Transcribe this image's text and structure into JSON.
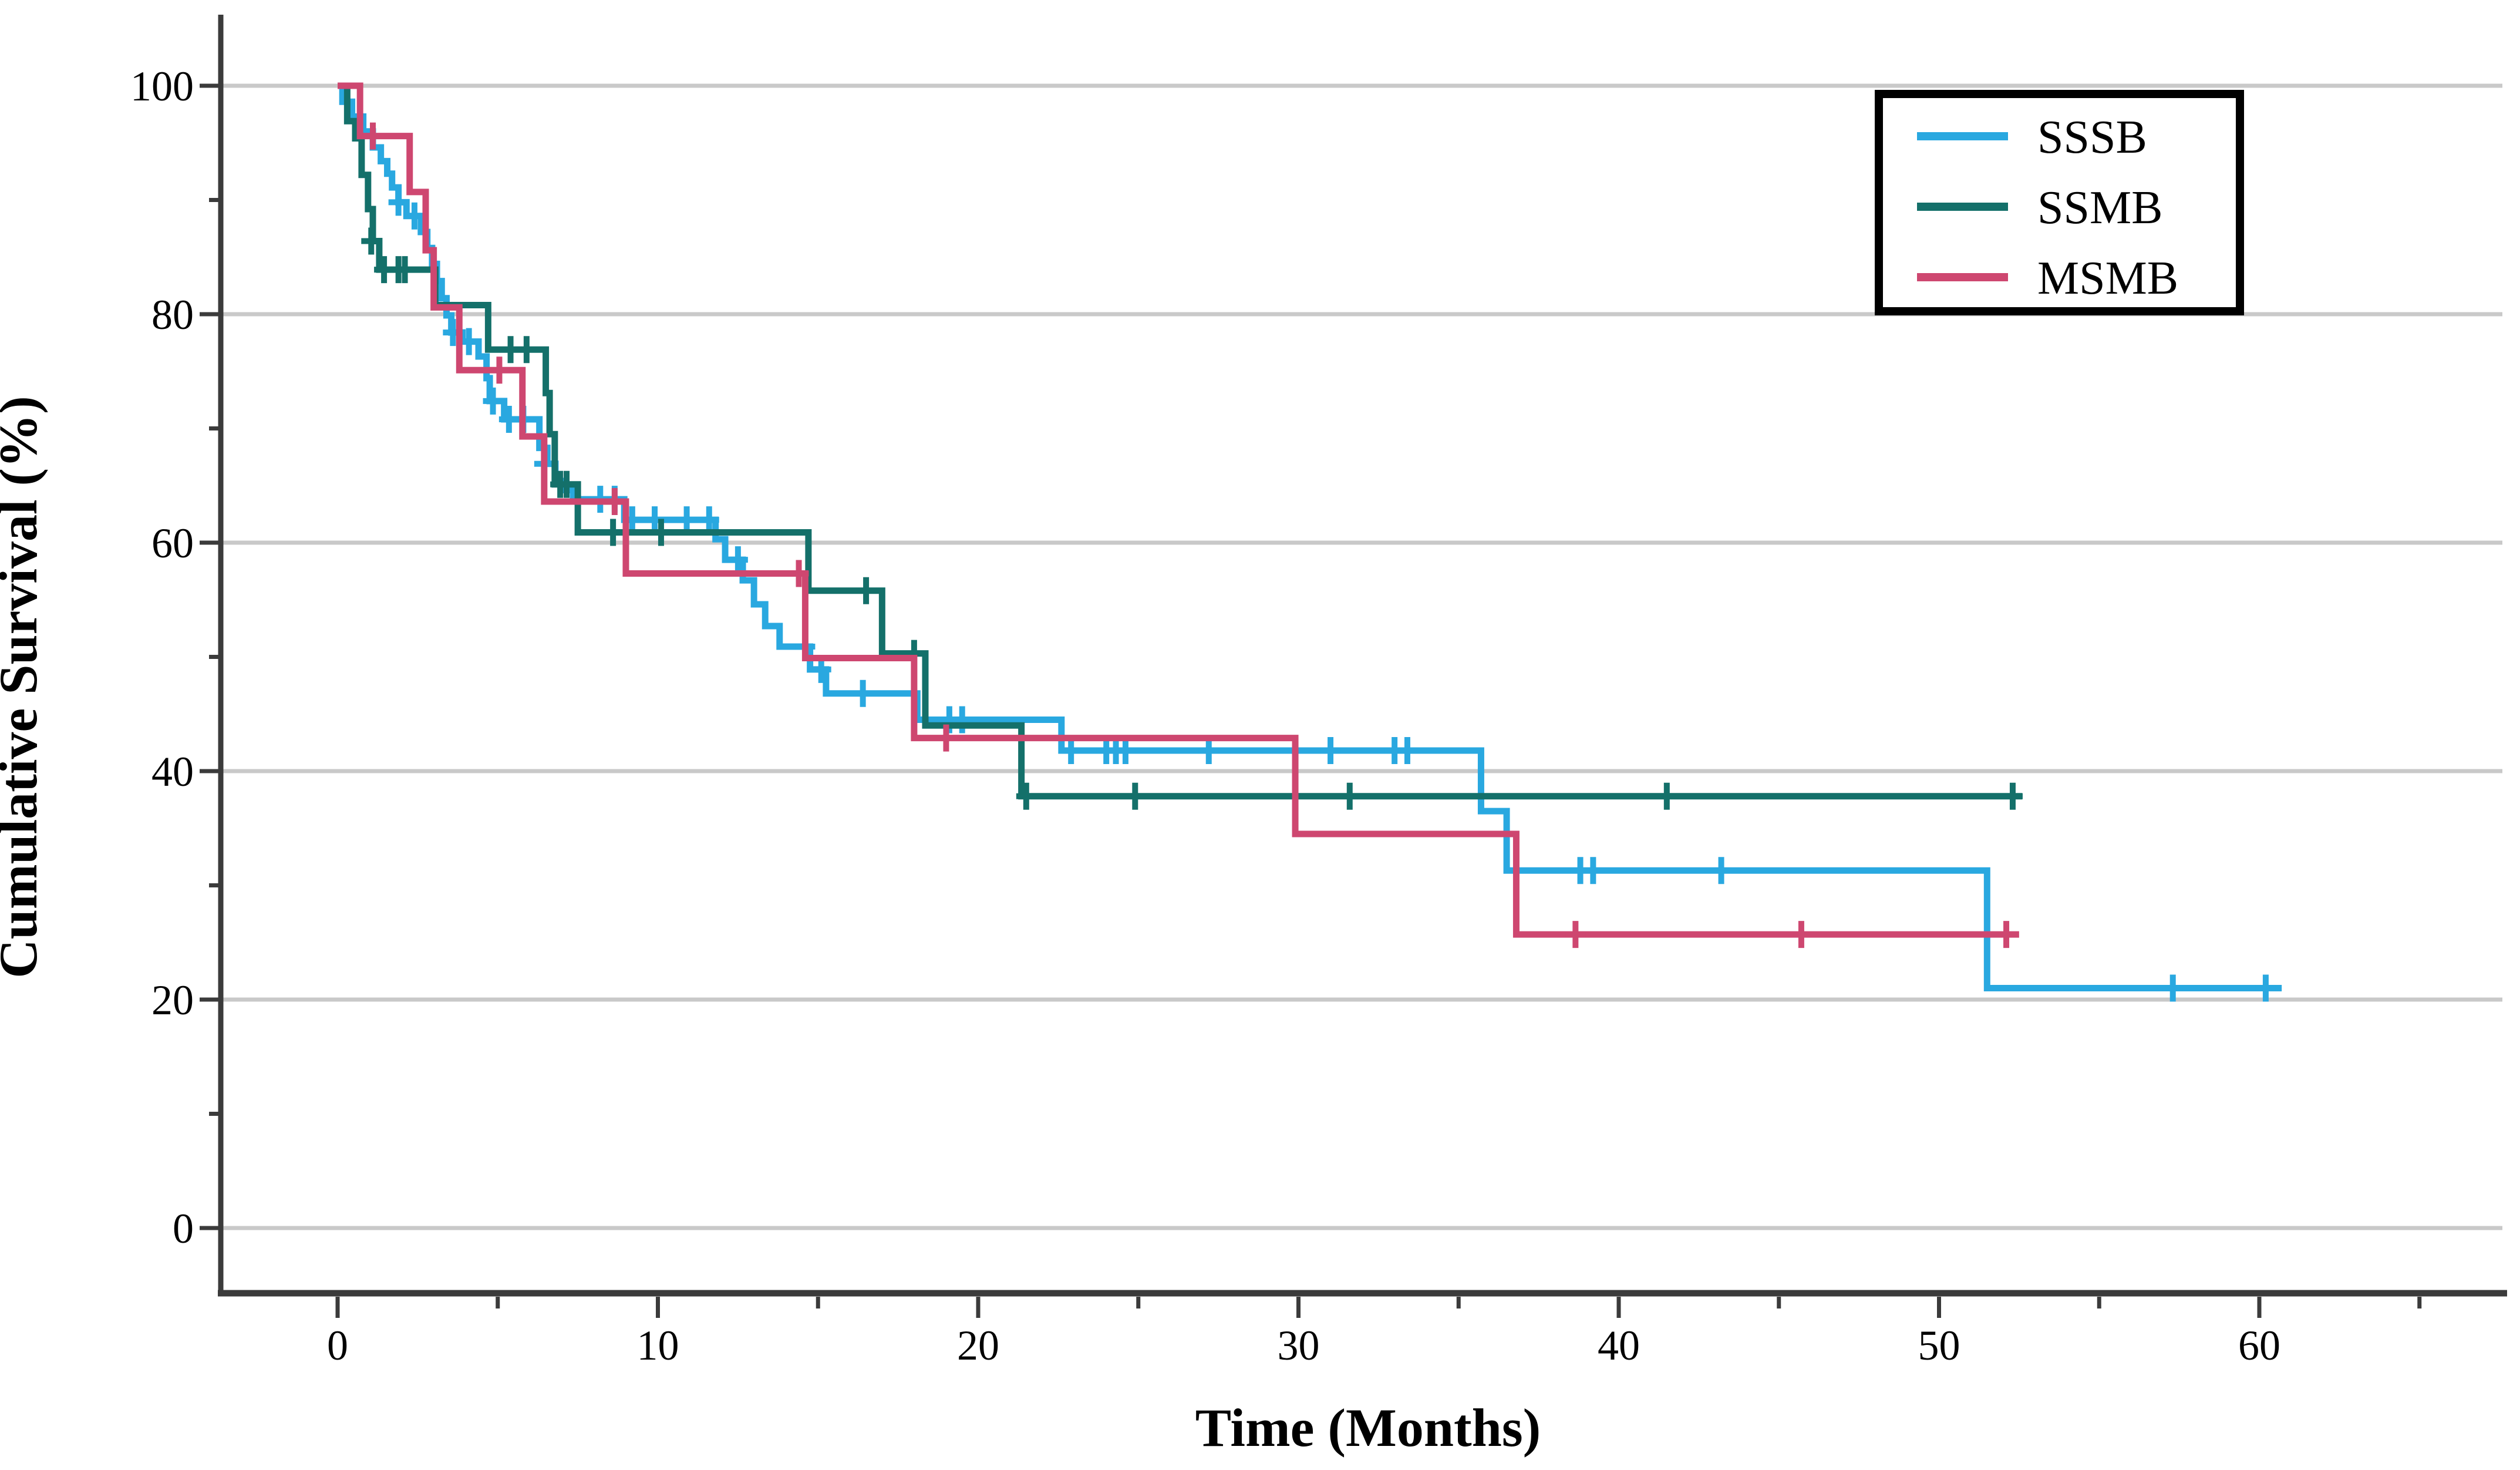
{
  "figure": {
    "background": "#ffffff",
    "axis_color": "#3b3b3b",
    "grid_color": "#c9c9c9",
    "text_color": "#000000"
  },
  "chart_data": {
    "type": "line",
    "subtype": "kaplan-meier-step-survival",
    "title": "",
    "xlabel": "Time (Months)",
    "ylabel": "Cumulative Survival (%)",
    "xlim": [
      -3.6,
      67.7
    ],
    "ylim": [
      -5.7,
      106
    ],
    "x_ticks_major": [
      0,
      10,
      20,
      30,
      40,
      50,
      60
    ],
    "x_ticks_minor": [
      5,
      15,
      25,
      35,
      45,
      55,
      65
    ],
    "y_ticks_major": [
      0,
      20,
      40,
      60,
      80,
      100
    ],
    "y_ticks_minor": [
      10,
      30,
      50,
      70,
      90
    ],
    "grid": "horizontal-major-only",
    "legend": {
      "position": "top-right",
      "border_color": "#000000",
      "fill": "#ffffff"
    },
    "series": [
      {
        "name": "SSSB",
        "color": "#29A8E0",
        "end_time": 60.7,
        "steps": [
          [
            0,
            100
          ],
          [
            0.15,
            98.6
          ],
          [
            0.45,
            97.3
          ],
          [
            0.8,
            96.0
          ],
          [
            1.1,
            94.6
          ],
          [
            1.35,
            93.4
          ],
          [
            1.55,
            92.3
          ],
          [
            1.7,
            91.1
          ],
          [
            1.9,
            89.8
          ],
          [
            2.15,
            88.6
          ],
          [
            2.6,
            87.2
          ],
          [
            2.8,
            85.8
          ],
          [
            2.95,
            84.4
          ],
          [
            3.1,
            82.9
          ],
          [
            3.25,
            81.4
          ],
          [
            3.4,
            79.9
          ],
          [
            3.55,
            78.4
          ],
          [
            3.9,
            77.6
          ],
          [
            4.4,
            76.3
          ],
          [
            4.65,
            74.4
          ],
          [
            4.75,
            72.4
          ],
          [
            5.2,
            70.8
          ],
          [
            6.3,
            68.3
          ],
          [
            6.55,
            66.9
          ],
          [
            6.8,
            65.4
          ],
          [
            7.1,
            64.6
          ],
          [
            7.35,
            63.8
          ],
          [
            8.95,
            62.0
          ],
          [
            11.8,
            60.3
          ],
          [
            12.1,
            58.5
          ],
          [
            12.65,
            56.7
          ],
          [
            13.0,
            54.6
          ],
          [
            13.35,
            52.7
          ],
          [
            13.8,
            50.9
          ],
          [
            14.75,
            48.9
          ],
          [
            15.25,
            46.8
          ],
          [
            18.1,
            44.5
          ],
          [
            22.6,
            41.8
          ],
          [
            35.7,
            36.5
          ],
          [
            36.5,
            31.3
          ],
          [
            51.5,
            21.0
          ]
        ],
        "censors": [
          [
            1.9,
            89.8
          ],
          [
            2.4,
            88.6
          ],
          [
            3.6,
            78.4
          ],
          [
            4.1,
            77.6
          ],
          [
            4.85,
            72.4
          ],
          [
            5.35,
            70.8
          ],
          [
            5.8,
            70.8
          ],
          [
            6.45,
            66.9
          ],
          [
            8.2,
            63.8
          ],
          [
            8.65,
            63.8
          ],
          [
            9.2,
            62.0
          ],
          [
            9.9,
            62.0
          ],
          [
            10.9,
            62.0
          ],
          [
            11.6,
            62.0
          ],
          [
            12.5,
            58.5
          ],
          [
            14.6,
            50.9
          ],
          [
            15.1,
            48.9
          ],
          [
            16.4,
            46.8
          ],
          [
            19.1,
            44.5
          ],
          [
            19.5,
            44.5
          ],
          [
            22.9,
            41.8
          ],
          [
            24.0,
            41.8
          ],
          [
            24.3,
            41.8
          ],
          [
            24.6,
            41.8
          ],
          [
            27.2,
            41.8
          ],
          [
            31.0,
            41.8
          ],
          [
            33.0,
            41.8
          ],
          [
            33.4,
            41.8
          ],
          [
            38.8,
            31.3
          ],
          [
            39.2,
            31.3
          ],
          [
            43.2,
            31.3
          ],
          [
            57.3,
            21.0
          ],
          [
            60.2,
            21.0
          ]
        ]
      },
      {
        "name": "SSMB",
        "color": "#14706A",
        "end_time": 52.6,
        "steps": [
          [
            0,
            100
          ],
          [
            0.3,
            96.9
          ],
          [
            0.55,
            95.4
          ],
          [
            0.75,
            92.2
          ],
          [
            0.95,
            89.2
          ],
          [
            1.1,
            86.4
          ],
          [
            1.3,
            83.9
          ],
          [
            3.05,
            80.8
          ],
          [
            4.7,
            76.9
          ],
          [
            6.5,
            73.1
          ],
          [
            6.62,
            69.5
          ],
          [
            6.78,
            65.1
          ],
          [
            7.5,
            60.9
          ],
          [
            14.7,
            55.8
          ],
          [
            17.0,
            50.3
          ],
          [
            18.35,
            44.0
          ],
          [
            21.35,
            37.8
          ]
        ],
        "censors": [
          [
            1.05,
            86.4
          ],
          [
            1.45,
            83.9
          ],
          [
            1.9,
            83.9
          ],
          [
            2.1,
            83.9
          ],
          [
            5.4,
            76.9
          ],
          [
            5.9,
            76.9
          ],
          [
            6.95,
            65.1
          ],
          [
            7.15,
            65.1
          ],
          [
            8.6,
            60.9
          ],
          [
            10.1,
            60.9
          ],
          [
            16.5,
            55.8
          ],
          [
            18.0,
            50.3
          ],
          [
            21.5,
            37.8
          ],
          [
            24.9,
            37.8
          ],
          [
            29.9,
            37.8
          ],
          [
            31.6,
            37.8
          ],
          [
            41.5,
            37.8
          ],
          [
            52.3,
            37.8
          ]
        ]
      },
      {
        "name": "MSMB",
        "color": "#CE4770",
        "end_time": 52.5,
        "steps": [
          [
            0,
            100
          ],
          [
            0.7,
            95.6
          ],
          [
            2.25,
            90.7
          ],
          [
            2.75,
            85.6
          ],
          [
            3.0,
            80.6
          ],
          [
            3.8,
            75.1
          ],
          [
            5.77,
            69.3
          ],
          [
            6.45,
            63.6
          ],
          [
            9.0,
            57.3
          ],
          [
            14.6,
            49.9
          ],
          [
            18.0,
            42.9
          ],
          [
            29.9,
            34.5
          ],
          [
            36.8,
            25.7
          ]
        ],
        "censors": [
          [
            1.1,
            95.6
          ],
          [
            5.05,
            75.1
          ],
          [
            8.65,
            63.6
          ],
          [
            14.4,
            57.3
          ],
          [
            19.0,
            42.9
          ],
          [
            38.65,
            25.7
          ],
          [
            45.7,
            25.7
          ],
          [
            52.1,
            25.7
          ]
        ]
      }
    ]
  }
}
